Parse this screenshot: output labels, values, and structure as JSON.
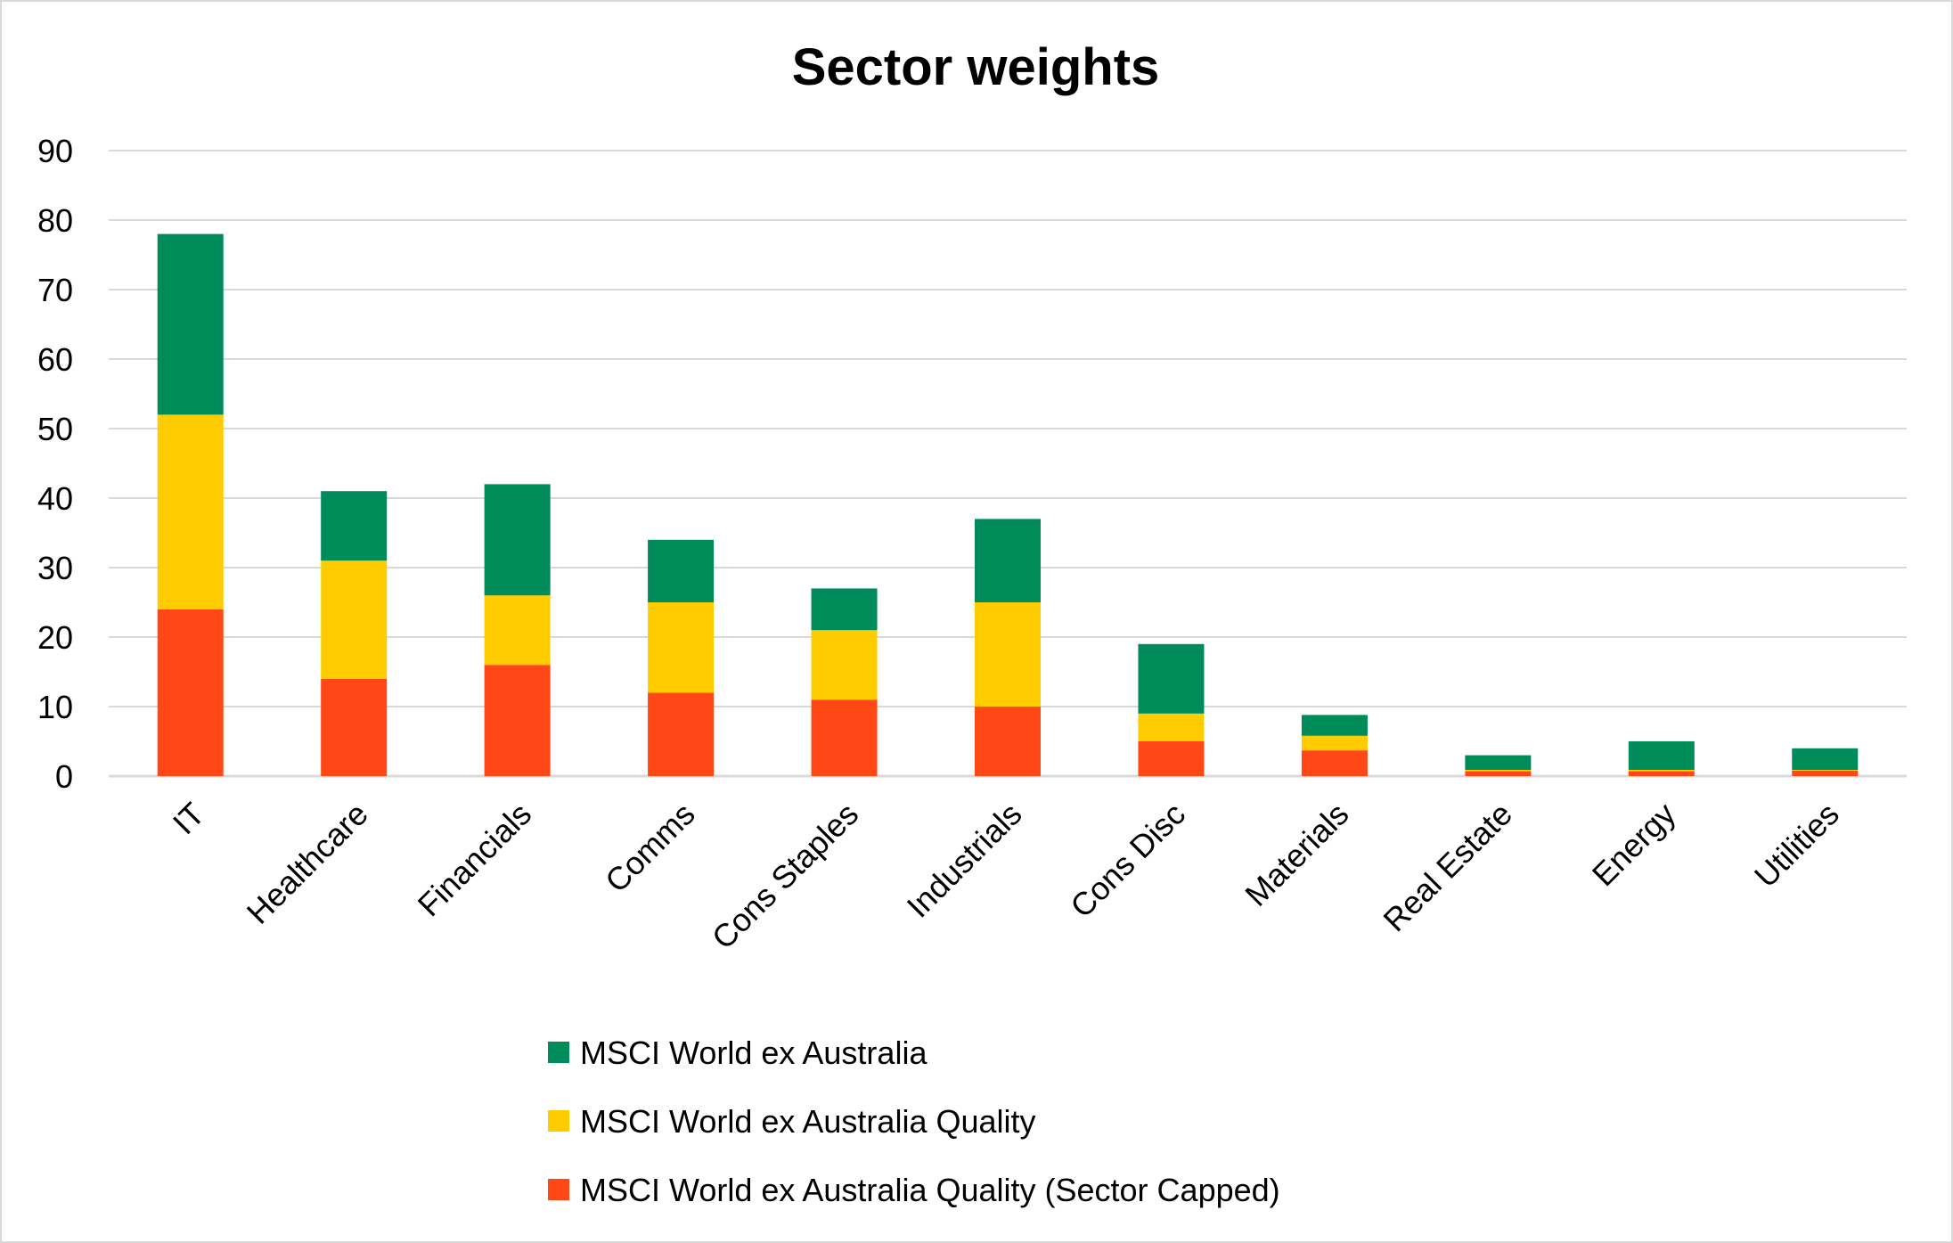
{
  "chart_data": {
    "type": "bar",
    "stacked": true,
    "title": "Sector weights",
    "xlabel": "",
    "ylabel": "",
    "ylim": [
      0,
      90
    ],
    "yticks": [
      0,
      10,
      20,
      30,
      40,
      50,
      60,
      70,
      80,
      90
    ],
    "grid": true,
    "legend_position": "bottom",
    "categories": [
      "IT",
      "Healthcare",
      "Financials",
      "Comms",
      "Cons Staples",
      "Industrials",
      "Cons Disc",
      "Materials",
      "Real Estate",
      "Energy",
      "Utilities"
    ],
    "series": [
      {
        "name": "MSCI World ex Australia Quality (Sector Capped)",
        "color": "#ff4815",
        "values": [
          24,
          14,
          16,
          12,
          11,
          10,
          5,
          3.7,
          0.7,
          0.7,
          0.8
        ]
      },
      {
        "name": "MSCI World ex Australia Quality",
        "color": "#ffcc00",
        "values": [
          28,
          17,
          10,
          13,
          10,
          15,
          4,
          2.1,
          0.2,
          0.2,
          0.1
        ]
      },
      {
        "name": "MSCI World ex Australia",
        "color": "#008c5a",
        "values": [
          26,
          10,
          16,
          9,
          6,
          12,
          10,
          3.0,
          2.1,
          4.1,
          3.1
        ]
      }
    ],
    "legend_order": [
      2,
      1,
      0
    ]
  }
}
